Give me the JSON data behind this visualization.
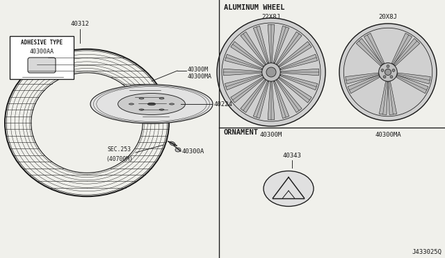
{
  "bg_color": "#f0f0eb",
  "line_color": "#1a1a1a",
  "diagram_code": "J433025Q",
  "section_label_aluminum": "ALUMINUM WHEEL",
  "section_label_ornament": "ORNAMENT",
  "adhesive_box_label": "ADHESIVE TYPE",
  "adhesive_box_partno": "40300AA",
  "part_labels": {
    "tire": "40312",
    "wheel_asm1": "40300M",
    "wheel_asm2": "40300MA",
    "drum": "40224",
    "valve": "40300A",
    "sec1": "SEC.253",
    "sec2": "(40700M)",
    "wheel_22": "40300M",
    "wheel_20": "40300MA",
    "ornament": "40343",
    "size_22": "22X8J",
    "size_20": "20X8J"
  }
}
